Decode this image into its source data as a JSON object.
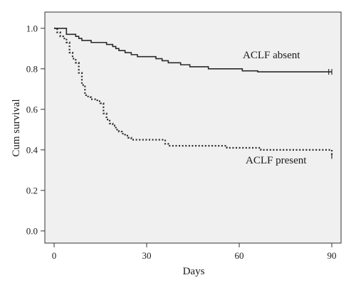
{
  "chart_data": {
    "type": "line",
    "subtype": "step (Kaplan-Meier survival curve)",
    "title": "",
    "xlabel": "Days",
    "ylabel": "Cum survival",
    "xlim": [
      -3,
      93
    ],
    "ylim": [
      -0.06,
      1.08
    ],
    "xticks": [
      0,
      30,
      60,
      90
    ],
    "yticks": [
      0.0,
      0.2,
      0.4,
      0.6,
      0.8,
      1.0
    ],
    "ytick_labels": [
      "0.0",
      "0.2",
      "0.4",
      "0.6",
      "0.8",
      "1.0"
    ],
    "grid": false,
    "legend": "none (direct labels on the curves)",
    "plot_background": "#f0f0f0",
    "series": [
      {
        "name": "ACLF absent",
        "line_style": "solid",
        "color": "#2a2a2a",
        "x": [
          0,
          1,
          3,
          4,
          5,
          6,
          7,
          8,
          9,
          10,
          12,
          13,
          14,
          16,
          17,
          18,
          19,
          20,
          21,
          22,
          23,
          24,
          25,
          26,
          27,
          29,
          33,
          34,
          35,
          36,
          37,
          38,
          41,
          43,
          44,
          48,
          50,
          57,
          61,
          66,
          90
        ],
        "y": [
          1.0,
          1.0,
          1.0,
          0.97,
          0.97,
          0.97,
          0.96,
          0.95,
          0.94,
          0.94,
          0.93,
          0.93,
          0.93,
          0.93,
          0.92,
          0.92,
          0.91,
          0.9,
          0.89,
          0.89,
          0.88,
          0.88,
          0.87,
          0.87,
          0.86,
          0.86,
          0.85,
          0.85,
          0.84,
          0.84,
          0.83,
          0.83,
          0.82,
          0.82,
          0.81,
          0.81,
          0.8,
          0.8,
          0.79,
          0.785,
          0.785
        ],
        "censor_marks_x": [
          89,
          90
        ]
      },
      {
        "name": "ACLF present",
        "line_style": "dotted",
        "color": "#2a2a2a",
        "x": [
          0,
          1,
          2,
          3,
          4,
          5,
          6,
          7,
          8,
          9,
          10,
          11,
          12,
          13,
          14,
          15,
          16,
          17,
          18,
          19,
          20,
          21,
          22,
          23,
          24,
          25,
          36,
          37,
          40,
          56,
          67,
          90
        ],
        "y": [
          1.0,
          0.98,
          0.96,
          0.95,
          0.93,
          0.88,
          0.85,
          0.83,
          0.78,
          0.72,
          0.67,
          0.66,
          0.65,
          0.65,
          0.64,
          0.63,
          0.58,
          0.55,
          0.53,
          0.52,
          0.5,
          0.49,
          0.48,
          0.47,
          0.46,
          0.45,
          0.43,
          0.42,
          0.42,
          0.41,
          0.4,
          0.37
        ],
        "censor_marks_x": [
          90
        ]
      }
    ]
  }
}
